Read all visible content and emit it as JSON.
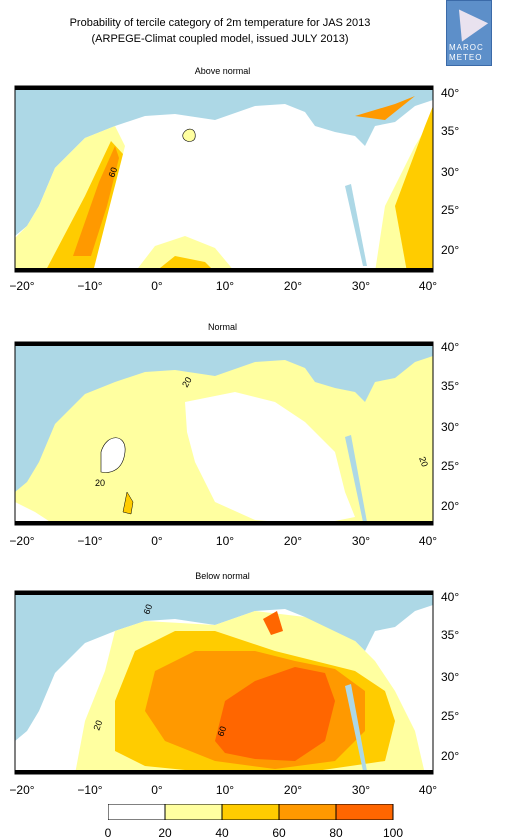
{
  "title_line1": "Probability of tercile category of 2m temperature for JAS 2013",
  "title_line2": "(ARPEGE-Climat coupled model, issued JULY 2013)",
  "logo": {
    "line1": "MAROC",
    "line2": "METEO",
    "icon": "meteo-maroc-logo"
  },
  "colors": {
    "sea": "#add8e6",
    "c0_20": "#ffffff",
    "c20_40": "#ffffa0",
    "c40_60": "#ffcc00",
    "c60_80": "#ff9900",
    "c80_100": "#ff6600",
    "frame": "#000000"
  },
  "x_ticks": [
    "−20°",
    "−10°",
    "0°",
    "10°",
    "20°",
    "30°",
    "40°"
  ],
  "y_ticks": [
    "40°",
    "35°",
    "30°",
    "25°",
    "20°"
  ],
  "panels": [
    {
      "title": "Above normal",
      "contour_labels": [
        "60"
      ]
    },
    {
      "title": "Normal",
      "contour_labels": [
        "20",
        "20",
        "20"
      ]
    },
    {
      "title": "Below normal",
      "contour_labels": [
        "60",
        "20",
        "60"
      ]
    }
  ],
  "legend": {
    "labels": [
      "0",
      "20",
      "40",
      "60",
      "80",
      "100"
    ]
  }
}
